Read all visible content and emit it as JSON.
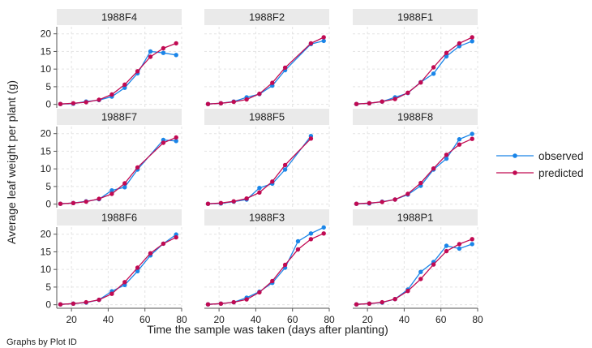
{
  "chart_data": {
    "type": "line",
    "note": "Graphs by Plot ID",
    "xlabel": "Time the sample was taken (days after planting)",
    "ylabel": "Average leaf weight per plant (g)",
    "x": [
      14,
      21,
      28,
      35,
      42,
      49,
      56,
      63,
      70,
      77
    ],
    "xlim": [
      12,
      80
    ],
    "xticks": [
      20,
      40,
      60,
      80
    ],
    "ylim": [
      -1,
      22
    ],
    "yticks": [
      0,
      5,
      10,
      15,
      20
    ],
    "grid": true,
    "legend_position": "right",
    "colors": {
      "observed": "#1a85e8",
      "predicted": "#c10a52"
    },
    "legend": [
      {
        "key": "observed",
        "label": "observed"
      },
      {
        "key": "predicted",
        "label": "predicted"
      }
    ],
    "panels": [
      {
        "title": "1988F4",
        "observed": [
          0.1,
          0.2,
          0.8,
          1.2,
          2.2,
          4.7,
          8.8,
          15.0,
          14.6,
          14.0
        ],
        "predicted": [
          0.1,
          0.3,
          0.6,
          1.3,
          2.8,
          5.6,
          9.4,
          13.5,
          15.9,
          17.3
        ]
      },
      {
        "title": "1988F2",
        "observed": [
          0.1,
          0.3,
          0.8,
          2.0,
          2.9,
          5.3,
          9.7,
          null,
          17.1,
          18.0
        ],
        "predicted": [
          0.1,
          0.3,
          0.7,
          1.4,
          3.0,
          6.1,
          10.4,
          null,
          17.3,
          19.0
        ]
      },
      {
        "title": "1988F1",
        "observed": [
          0.1,
          0.3,
          0.8,
          2.0,
          3.2,
          6.3,
          8.7,
          13.6,
          16.5,
          17.9
        ],
        "predicted": [
          0.1,
          0.3,
          0.8,
          1.5,
          3.3,
          6.2,
          10.5,
          14.6,
          17.3,
          19.0
        ]
      },
      {
        "title": "1988F7",
        "observed": [
          0.1,
          0.3,
          0.8,
          1.4,
          3.9,
          4.8,
          9.8,
          null,
          18.2,
          17.9
        ],
        "predicted": [
          0.1,
          0.3,
          0.7,
          1.5,
          2.9,
          5.9,
          10.4,
          null,
          17.4,
          18.9
        ]
      },
      {
        "title": "1988F5",
        "observed": [
          0.1,
          0.2,
          0.7,
          1.3,
          4.6,
          5.8,
          9.8,
          null,
          19.3,
          null
        ],
        "predicted": [
          0.1,
          0.3,
          0.8,
          1.6,
          3.3,
          6.4,
          11.1,
          null,
          18.6,
          null
        ]
      },
      {
        "title": "1988F8",
        "observed": [
          0.1,
          0.2,
          0.7,
          1.3,
          2.7,
          5.2,
          9.8,
          12.9,
          18.4,
          19.9
        ],
        "predicted": [
          0.1,
          0.3,
          0.6,
          1.3,
          2.9,
          6.0,
          10.1,
          14.0,
          16.9,
          18.5
        ]
      },
      {
        "title": "1988F6",
        "observed": [
          0.1,
          0.3,
          0.6,
          1.4,
          3.8,
          5.6,
          9.5,
          14.0,
          17.3,
          19.9
        ],
        "predicted": [
          0.1,
          0.3,
          0.7,
          1.4,
          3.1,
          6.4,
          10.5,
          14.6,
          17.3,
          19.1
        ]
      },
      {
        "title": "1988F3",
        "observed": [
          0.1,
          0.3,
          0.7,
          2.0,
          3.7,
          6.2,
          10.5,
          18.0,
          20.2,
          21.9
        ],
        "predicted": [
          0.1,
          0.3,
          0.7,
          1.5,
          3.5,
          6.7,
          11.3,
          15.7,
          18.6,
          20.2
        ]
      },
      {
        "title": "1988P1",
        "observed": [
          0.1,
          0.3,
          0.6,
          1.6,
          4.3,
          9.3,
          12.1,
          16.7,
          15.9,
          17.2
        ],
        "predicted": [
          0.1,
          0.3,
          0.7,
          1.6,
          3.9,
          7.3,
          11.4,
          15.2,
          17.2,
          18.6
        ]
      }
    ]
  }
}
